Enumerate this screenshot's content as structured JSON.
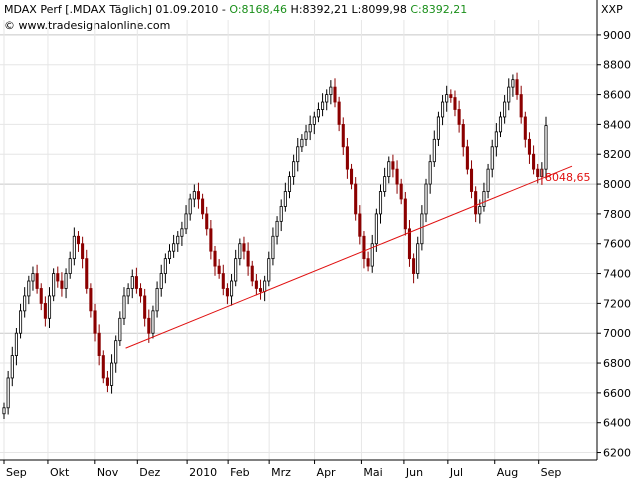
{
  "header": {
    "line1_prefix": "MDAX Perf [.MDAX  Täglich]  01.09.2010  -",
    "open": "O:8168,46",
    "high": "H:8392,21",
    "low": "L:8099,98",
    "close": "C:8392,21",
    "watermark": "© www.tradesignalonline.com",
    "axis_unit": "XXP"
  },
  "colors": {
    "up_candle": "#000000",
    "down_candle": "#8b0000",
    "trendline": "#e01010",
    "open_text": "#1a8f1a",
    "high_text": "#000000",
    "low_text": "#000000",
    "close_text": "#1a8f1a",
    "price_label": "#e01010",
    "grid": "#e6e6e6",
    "grid_strong": "#c8c8c8"
  },
  "chart_data": {
    "type": "candlestick",
    "title": "MDAX Perf [.MDAX  Täglich]",
    "y_range": [
      6150,
      9100
    ],
    "y_ticks": [
      6200,
      6400,
      6600,
      6800,
      7000,
      7200,
      7400,
      7600,
      7800,
      8000,
      8200,
      8400,
      8600,
      8800,
      9000
    ],
    "strong_gridlines": [
      7000,
      8000,
      9000
    ],
    "x_labels": [
      "Sep",
      "Okt",
      "Nov",
      "Dez",
      "2010",
      "Feb",
      "Mrz",
      "Apr",
      "Mai",
      "Jun",
      "Jul",
      "Aug",
      "Sep"
    ],
    "price_label": "8048,65",
    "price_label_value": 8048.65,
    "trendline": {
      "start": [
        "2009-11-23",
        6900
      ],
      "end": [
        "2010-09-06",
        8120
      ]
    },
    "series": [
      {
        "values": [
          6500,
          6700,
          6850,
          7000,
          7150,
          7250,
          7350,
          7400,
          7300,
          7200,
          7100,
          7250,
          7400,
          7350,
          7300
        ]
      },
      {
        "values": [
          7400,
          7500,
          7650,
          7600,
          7500,
          7300,
          7150,
          7000,
          6850,
          6700,
          6650,
          6800,
          6950,
          7100,
          7250,
          7300,
          7380,
          7300,
          7250,
          7100
        ]
      },
      {
        "values": [
          7000,
          7150,
          7300,
          7400,
          7500,
          7550,
          7600,
          7650,
          7700,
          7800,
          7900,
          7950,
          7900,
          7800,
          7700,
          7550
        ]
      },
      {
        "values": [
          7450,
          7400,
          7300,
          7250,
          7350,
          7500,
          7600,
          7550,
          7450,
          7350,
          7300,
          7280,
          7350,
          7500,
          7650,
          7750,
          7850,
          7950,
          8050,
          8150
        ]
      },
      {
        "values": [
          8250,
          8300,
          8350,
          8400,
          8450,
          8500,
          8550,
          8600,
          8650,
          8550,
          8400,
          8250,
          8100,
          8000,
          7800,
          7650,
          7500,
          7450,
          7600,
          7800
        ]
      },
      {
        "values": [
          7950,
          8050,
          8150,
          8100,
          8000,
          7900,
          7700,
          7500,
          7400,
          7600,
          7800,
          8000,
          8150,
          8300,
          8450,
          8550,
          8600,
          8580,
          8500,
          8400
        ]
      },
      {
        "values": [
          8250,
          8100,
          7950,
          7800,
          7850,
          7950,
          8100,
          8250,
          8350,
          8450,
          8550,
          8650,
          8700,
          8600,
          8450,
          8300,
          8200,
          8100,
          8050,
          8100,
          8392
        ]
      }
    ],
    "dates_note": "",
    "x_start": "2009-09-01",
    "x_end": "2010-09-06"
  },
  "axis": {
    "x_label_dates": [
      "2009-09-01",
      "2009-10-01",
      "2009-11-02",
      "2009-12-01",
      "2010-01-04",
      "2010-02-01",
      "2010-03-01",
      "2010-04-01",
      "2010-05-03",
      "2010-06-01",
      "2010-07-01",
      "2010-08-02",
      "2010-09-01"
    ]
  }
}
